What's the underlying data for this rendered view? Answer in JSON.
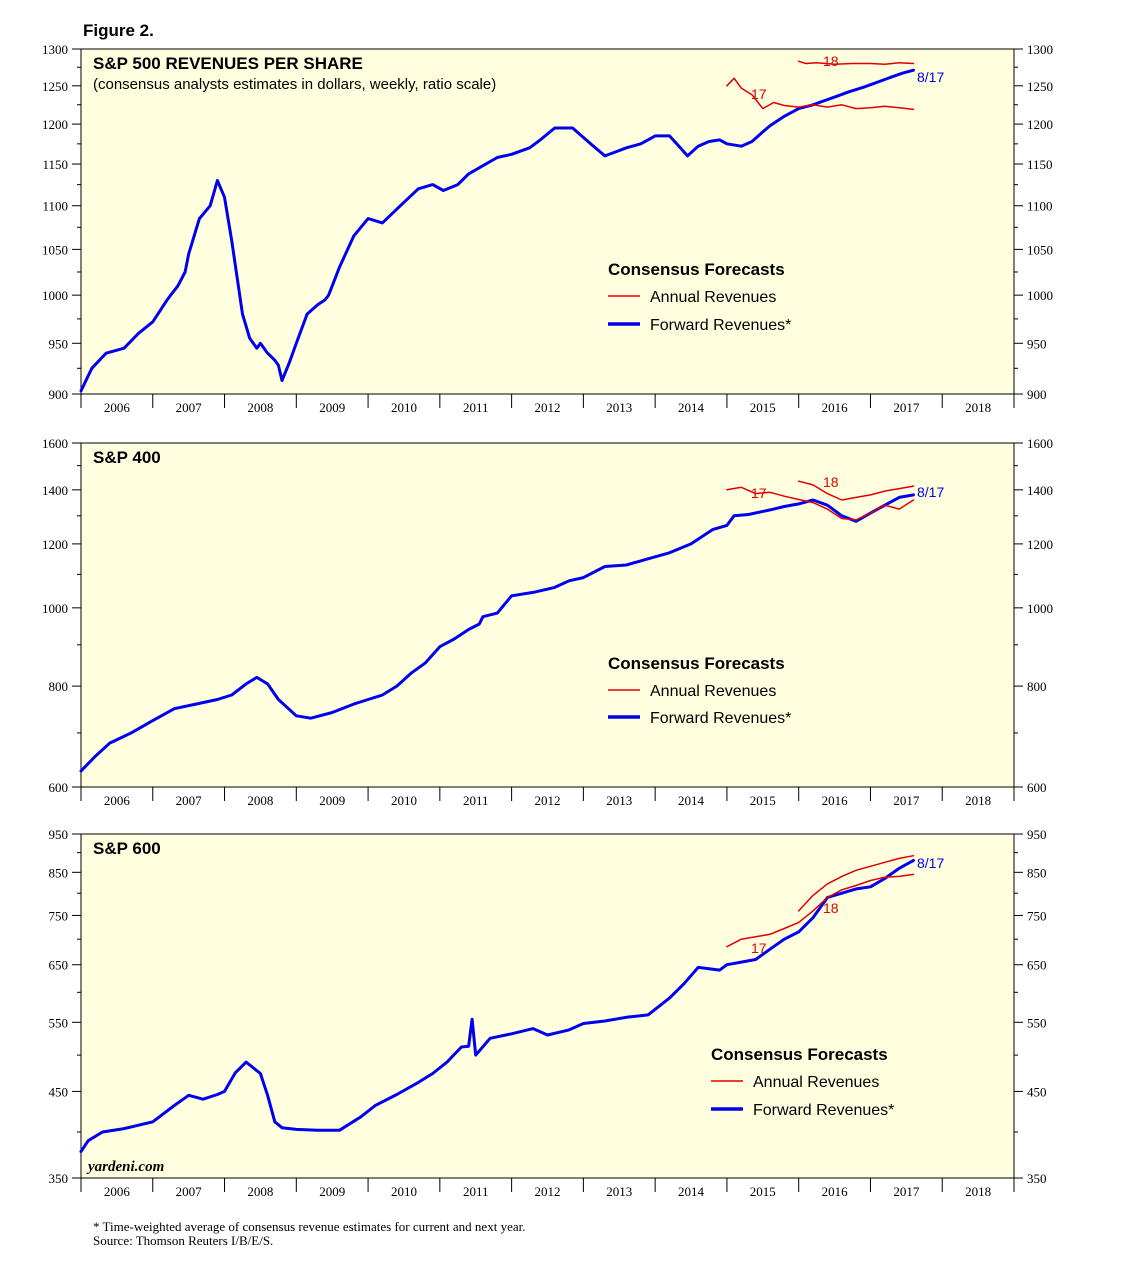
{
  "figure_title": "Figure 2.",
  "colors": {
    "plot_bg": "#ffffe0",
    "annual": "#e00000",
    "forward": "#0000ee"
  },
  "footnote": "* Time-weighted average of consensus revenue estimates for current and next year.",
  "source": "Source: Thomson Reuters I/B/E/S.",
  "brand": "yardeni.com",
  "chart_data": [
    {
      "type": "line",
      "title": "S&P 500 REVENUES PER SHARE",
      "subtitle": "(consensus analysts estimates in dollars, weekly, ratio scale)",
      "scale": "log",
      "ylim": [
        900,
        1300
      ],
      "yticks": [
        900,
        950,
        1000,
        1050,
        1100,
        1150,
        1200,
        1250,
        1300
      ],
      "xlim": [
        2006.0,
        2019.0
      ],
      "year_labels": [
        "2006",
        "2007",
        "2008",
        "2009",
        "2010",
        "2011",
        "2012",
        "2013",
        "2014",
        "2015",
        "2016",
        "2017",
        "2018"
      ],
      "legend": {
        "title": "Consensus Forecasts",
        "annual": "Annual Revenues",
        "forward": "Forward Revenues*"
      },
      "labels": {
        "a17": "17",
        "a18": "18",
        "date": "8/17"
      },
      "series": [
        {
          "name": "Forward Revenues*",
          "x": [
            2006.0,
            2006.15,
            2006.35,
            2006.6,
            2006.8,
            2007.0,
            2007.2,
            2007.35,
            2007.45,
            2007.5,
            2007.65,
            2007.8,
            2007.9,
            2008.0,
            2008.1,
            2008.25,
            2008.35,
            2008.45,
            2008.5,
            2008.6,
            2008.7,
            2008.75,
            2008.8,
            2008.9,
            2009.0,
            2009.15,
            2009.3,
            2009.4,
            2009.45,
            2009.6,
            2009.8,
            2010.0,
            2010.2,
            2010.45,
            2010.7,
            2010.9,
            2011.05,
            2011.25,
            2011.4,
            2011.6,
            2011.8,
            2012.0,
            2012.25,
            2012.4,
            2012.6,
            2012.85,
            2013.1,
            2013.3,
            2013.45,
            2013.6,
            2013.8,
            2014.0,
            2014.2,
            2014.35,
            2014.45,
            2014.6,
            2014.75,
            2014.9,
            2015.0,
            2015.2,
            2015.35,
            2015.5,
            2015.6,
            2015.8,
            2016.0,
            2016.2,
            2016.35,
            2016.5,
            2016.7,
            2016.9,
            2017.1,
            2017.3,
            2017.45,
            2017.6
          ],
          "values": [
            903,
            925,
            940,
            945,
            960,
            972,
            995,
            1010,
            1025,
            1045,
            1085,
            1100,
            1130,
            1110,
            1060,
            980,
            955,
            945,
            950,
            940,
            933,
            928,
            913,
            930,
            950,
            980,
            990,
            995,
            1000,
            1030,
            1065,
            1085,
            1080,
            1100,
            1120,
            1125,
            1118,
            1125,
            1138,
            1148,
            1158,
            1162,
            1170,
            1180,
            1195,
            1195,
            1175,
            1160,
            1165,
            1170,
            1175,
            1185,
            1185,
            1170,
            1160,
            1172,
            1178,
            1180,
            1175,
            1172,
            1178,
            1190,
            1198,
            1210,
            1220,
            1225,
            1230,
            1235,
            1242,
            1248,
            1255,
            1262,
            1267,
            1271
          ]
        },
        {
          "name": "Annual Revenues 2017",
          "x": [
            2015.0,
            2015.1,
            2015.2,
            2015.35,
            2015.5,
            2015.65,
            2015.8,
            2016.0,
            2016.2,
            2016.4,
            2016.6,
            2016.8,
            2017.0,
            2017.2,
            2017.4,
            2017.6
          ],
          "values": [
            1250,
            1260,
            1247,
            1238,
            1220,
            1228,
            1224,
            1222,
            1225,
            1222,
            1225,
            1220,
            1221,
            1223,
            1221,
            1219
          ]
        },
        {
          "name": "Annual Revenues 2018",
          "x": [
            2016.0,
            2016.1,
            2016.25,
            2016.5,
            2016.75,
            2017.0,
            2017.2,
            2017.4,
            2017.6
          ],
          "values": [
            1283,
            1280,
            1281,
            1279,
            1280,
            1280,
            1279,
            1281,
            1280
          ]
        }
      ]
    },
    {
      "type": "line",
      "title": "S&P 400",
      "scale": "log",
      "ylim": [
        600,
        1600
      ],
      "yticks": [
        600,
        800,
        1000,
        1200,
        1400,
        1600
      ],
      "xlim": [
        2006.0,
        2019.0
      ],
      "year_labels": [
        "2006",
        "2007",
        "2008",
        "2009",
        "2010",
        "2011",
        "2012",
        "2013",
        "2014",
        "2015",
        "2016",
        "2017",
        "2018"
      ],
      "legend": {
        "title": "Consensus Forecasts",
        "annual": "Annual Revenues",
        "forward": "Forward Revenues*"
      },
      "labels": {
        "a17": "17",
        "a18": "18",
        "date": "8/17"
      },
      "series": [
        {
          "name": "Forward Revenues*",
          "x": [
            2006.0,
            2006.2,
            2006.4,
            2006.7,
            2007.0,
            2007.3,
            2007.6,
            2007.9,
            2008.1,
            2008.3,
            2008.45,
            2008.6,
            2008.75,
            2009.0,
            2009.2,
            2009.5,
            2009.8,
            2010.0,
            2010.2,
            2010.4,
            2010.6,
            2010.8,
            2011.0,
            2011.2,
            2011.4,
            2011.55,
            2011.6,
            2011.8,
            2012.0,
            2012.3,
            2012.6,
            2012.8,
            2013.0,
            2013.3,
            2013.6,
            2013.9,
            2014.2,
            2014.5,
            2014.8,
            2015.0,
            2015.1,
            2015.3,
            2015.6,
            2015.8,
            2016.0,
            2016.2,
            2016.4,
            2016.6,
            2016.8,
            2017.0,
            2017.2,
            2017.4,
            2017.6
          ],
          "values": [
            628,
            655,
            680,
            700,
            725,
            750,
            760,
            770,
            780,
            805,
            820,
            805,
            770,
            735,
            730,
            742,
            760,
            770,
            780,
            800,
            830,
            855,
            895,
            915,
            940,
            955,
            975,
            985,
            1035,
            1045,
            1060,
            1080,
            1090,
            1125,
            1130,
            1150,
            1170,
            1200,
            1250,
            1265,
            1300,
            1305,
            1322,
            1335,
            1345,
            1360,
            1340,
            1300,
            1280,
            1310,
            1340,
            1370,
            1380
          ]
        },
        {
          "name": "Annual Revenues 2017",
          "x": [
            2015.0,
            2015.2,
            2015.4,
            2015.6,
            2015.8,
            2016.0,
            2016.2,
            2016.4,
            2016.6,
            2016.8,
            2017.0,
            2017.2,
            2017.4,
            2017.6
          ],
          "values": [
            1400,
            1410,
            1385,
            1390,
            1375,
            1362,
            1350,
            1325,
            1290,
            1285,
            1310,
            1340,
            1325,
            1360
          ]
        },
        {
          "name": "Annual Revenues 2018",
          "x": [
            2016.0,
            2016.2,
            2016.4,
            2016.6,
            2016.8,
            2017.0,
            2017.2,
            2017.4,
            2017.6
          ],
          "values": [
            1435,
            1420,
            1385,
            1360,
            1370,
            1380,
            1395,
            1405,
            1415
          ]
        }
      ]
    },
    {
      "type": "line",
      "title": "S&P 600",
      "scale": "log",
      "ylim": [
        350,
        950
      ],
      "yticks": [
        350,
        450,
        550,
        650,
        750,
        850,
        950
      ],
      "xlim": [
        2006.0,
        2019.0
      ],
      "year_labels": [
        "2006",
        "2007",
        "2008",
        "2009",
        "2010",
        "2011",
        "2012",
        "2013",
        "2014",
        "2015",
        "2016",
        "2017",
        "2018"
      ],
      "legend": {
        "title": "Consensus Forecasts",
        "annual": "Annual Revenues",
        "forward": "Forward Revenues*"
      },
      "labels": {
        "a17": "17",
        "a18": "18",
        "date": "8/17"
      },
      "series": [
        {
          "name": "Forward Revenues*",
          "x": [
            2006.0,
            2006.1,
            2006.3,
            2006.6,
            2007.0,
            2007.3,
            2007.5,
            2007.7,
            2007.9,
            2008.0,
            2008.15,
            2008.3,
            2008.5,
            2008.6,
            2008.7,
            2008.8,
            2009.0,
            2009.3,
            2009.6,
            2009.9,
            2010.1,
            2010.4,
            2010.7,
            2010.9,
            2011.1,
            2011.3,
            2011.4,
            2011.45,
            2011.5,
            2011.7,
            2012.0,
            2012.3,
            2012.5,
            2012.8,
            2013.0,
            2013.3,
            2013.6,
            2013.9,
            2014.2,
            2014.4,
            2014.6,
            2014.9,
            2015.0,
            2015.2,
            2015.4,
            2015.6,
            2015.8,
            2016.0,
            2016.2,
            2016.4,
            2016.6,
            2016.8,
            2017.0,
            2017.2,
            2017.4,
            2017.6
          ],
          "values": [
            378,
            390,
            400,
            404,
            412,
            432,
            445,
            440,
            446,
            450,
            475,
            490,
            474,
            445,
            412,
            405,
            403,
            402,
            402,
            418,
            432,
            446,
            462,
            474,
            490,
            512,
            513,
            555,
            500,
            525,
            532,
            540,
            530,
            538,
            548,
            552,
            558,
            562,
            590,
            615,
            645,
            640,
            650,
            655,
            660,
            680,
            700,
            715,
            745,
            790,
            800,
            810,
            815,
            835,
            860,
            880
          ]
        },
        {
          "name": "Annual Revenues 2017",
          "x": [
            2015.0,
            2015.2,
            2015.4,
            2015.6,
            2015.8,
            2016.0,
            2016.2,
            2016.4,
            2016.6,
            2016.8,
            2017.0,
            2017.2,
            2017.4,
            2017.6
          ],
          "values": [
            685,
            700,
            705,
            710,
            722,
            735,
            760,
            790,
            808,
            818,
            830,
            838,
            840,
            845
          ]
        },
        {
          "name": "Annual Revenues 2018",
          "x": [
            2016.0,
            2016.2,
            2016.4,
            2016.6,
            2016.8,
            2017.0,
            2017.2,
            2017.4,
            2017.6
          ],
          "values": [
            760,
            795,
            822,
            840,
            855,
            865,
            875,
            885,
            892
          ]
        }
      ]
    }
  ]
}
